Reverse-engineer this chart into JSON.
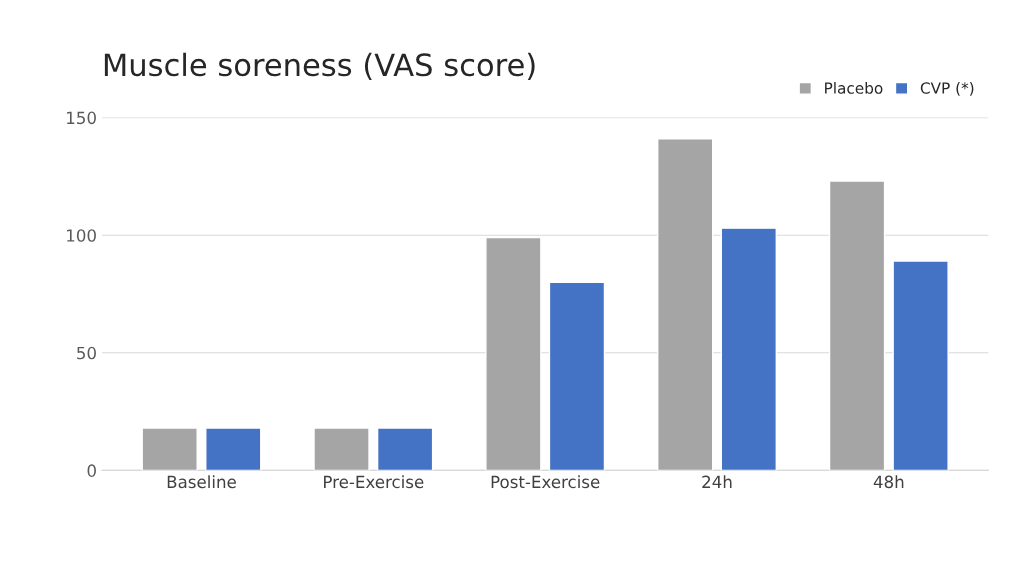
{
  "chart_data": {
    "type": "bar",
    "title": "Muscle soreness (VAS score)",
    "categories": [
      "Baseline",
      "Pre-Exercise",
      "Post-Exercise",
      "24h",
      "48h"
    ],
    "series": [
      {
        "name": "Placebo",
        "color": "#a5a5a5",
        "values": [
          18,
          18,
          99,
          141,
          123
        ]
      },
      {
        "name": "CVP (*)",
        "color": "#4472c4",
        "values": [
          18,
          18,
          80,
          103,
          89
        ]
      }
    ],
    "ylim": [
      0,
      150
    ],
    "yticks": [
      0,
      50,
      100,
      150
    ],
    "grid": "y",
    "legend": "top right"
  }
}
